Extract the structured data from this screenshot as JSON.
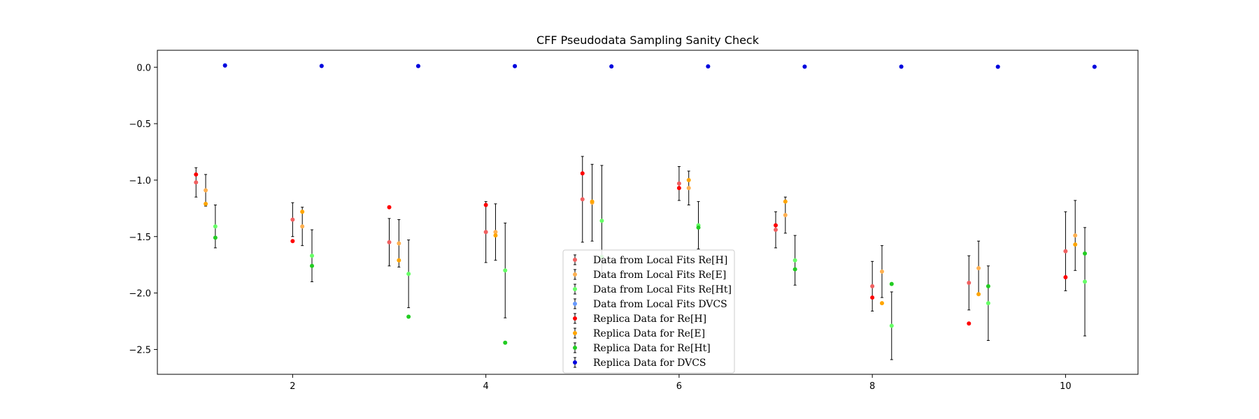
{
  "chart_data": {
    "type": "scatter",
    "title": "CFF Pseudodata Sampling Sanity Check",
    "xlabel": "",
    "ylabel": "",
    "xlim": [
      0.6,
      10.75
    ],
    "ylim": [
      -2.72,
      0.15
    ],
    "x_ticks": [
      2,
      4,
      6,
      8,
      10
    ],
    "y_ticks": [
      0.0,
      -0.5,
      -1.0,
      -1.5,
      -2.0,
      -2.5
    ],
    "x_tick_labels": [
      "2",
      "4",
      "6",
      "8",
      "10"
    ],
    "y_tick_labels": [
      "0.0",
      "−0.5",
      "−1.0",
      "−1.5",
      "−2.0",
      "−2.5"
    ],
    "grid": false,
    "legend_position": "lower-center",
    "series": [
      {
        "name": "Data from Local Fits Re[H]",
        "color": "#f06060",
        "kind": "errorbar",
        "x": [
          1,
          2,
          3,
          4,
          5,
          6,
          7,
          8,
          9,
          10
        ],
        "y": [
          -1.02,
          -1.35,
          -1.55,
          -1.46,
          -1.17,
          -1.03,
          -1.44,
          -1.94,
          -1.91,
          -1.63
        ],
        "yerr": [
          0.13,
          0.15,
          0.21,
          0.27,
          0.38,
          0.15,
          0.16,
          0.22,
          0.24,
          0.35
        ]
      },
      {
        "name": "Data from Local Fits Re[E]",
        "color": "#ffb050",
        "kind": "errorbar",
        "x": [
          1.1,
          2.1,
          3.1,
          4.1,
          5.1,
          6.1,
          7.1,
          8.1,
          9.1,
          10.1
        ],
        "y": [
          -1.09,
          -1.41,
          -1.56,
          -1.46,
          -1.2,
          -1.07,
          -1.31,
          -1.81,
          -1.78,
          -1.49
        ],
        "yerr": [
          0.14,
          0.17,
          0.21,
          0.25,
          0.34,
          0.15,
          0.16,
          0.23,
          0.24,
          0.31
        ]
      },
      {
        "name": "Data from Local Fits Re[Ht]",
        "color": "#66ff66",
        "kind": "errorbar",
        "x": [
          1.2,
          2.2,
          3.2,
          4.2,
          5.2,
          6.2,
          7.2,
          8.2,
          9.2,
          10.2
        ],
        "y": [
          -1.41,
          -1.67,
          -1.83,
          -1.8,
          -1.36,
          -1.4,
          -1.71,
          -2.29,
          -2.09,
          -1.9
        ],
        "yerr": [
          0.19,
          0.23,
          0.3,
          0.42,
          0.49,
          0.21,
          0.22,
          0.3,
          0.33,
          0.48
        ]
      },
      {
        "name": "Data from Local Fits DVCS",
        "color": "#6699ff",
        "kind": "errorbar",
        "x": [
          1.3,
          2.3,
          3.3,
          4.3,
          5.3,
          6.3,
          7.3,
          8.3,
          9.3,
          10.3
        ],
        "y": [
          0.018,
          0.012,
          0.011,
          0.01,
          0.008,
          0.008,
          0.006,
          0.006,
          0.005,
          0.004
        ],
        "yerr": [
          0.003,
          0.003,
          0.003,
          0.003,
          0.003,
          0.003,
          0.003,
          0.003,
          0.003,
          0.003
        ]
      },
      {
        "name": "Replica Data for Re[H]",
        "color": "#ff0000",
        "kind": "marker",
        "x": [
          1,
          2,
          3,
          4,
          5,
          6,
          7,
          8,
          9,
          10
        ],
        "y": [
          -0.95,
          -1.54,
          -1.24,
          -1.22,
          -0.94,
          -1.07,
          -1.4,
          -2.04,
          -2.27,
          -1.86
        ]
      },
      {
        "name": "Replica Data for Re[E]",
        "color": "#ffa500",
        "kind": "marker",
        "x": [
          1.1,
          2.1,
          3.1,
          4.1,
          5.1,
          6.1,
          7.1,
          8.1,
          9.1,
          10.1
        ],
        "y": [
          -1.21,
          -1.28,
          -1.71,
          -1.49,
          -1.19,
          -1.0,
          -1.19,
          -2.09,
          -2.01,
          -1.57
        ]
      },
      {
        "name": "Replica Data for Re[Ht]",
        "color": "#22cc22",
        "kind": "marker",
        "x": [
          1.2,
          2.2,
          3.2,
          4.2,
          5.2,
          6.2,
          7.2,
          8.2,
          9.2,
          10.2
        ],
        "y": [
          -1.51,
          -1.76,
          -2.21,
          -2.44,
          -1.68,
          -1.42,
          -1.79,
          -1.92,
          -1.94,
          -1.65
        ]
      },
      {
        "name": "Replica Data for DVCS",
        "color": "#0000dd",
        "kind": "marker",
        "x": [
          1.3,
          2.3,
          3.3,
          4.3,
          5.3,
          6.3,
          7.3,
          8.3,
          9.3,
          10.3
        ],
        "y": [
          0.015,
          0.011,
          0.01,
          0.009,
          0.007,
          0.007,
          0.005,
          0.005,
          0.004,
          0.004
        ]
      }
    ]
  }
}
